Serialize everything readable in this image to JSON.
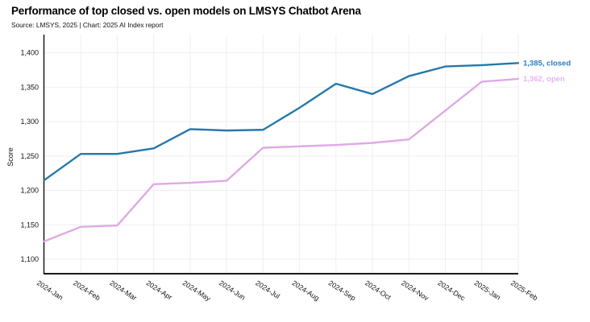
{
  "header": {
    "title": "Performance of top closed vs. open models on LMSYS Chatbot Arena",
    "source_line": "Source: LMSYS, 2025 | Chart: 2025 AI Index report"
  },
  "chart_data": {
    "type": "line",
    "title": "Performance of top closed vs. open models on LMSYS Chatbot Arena",
    "subtitle": "Source: LMSYS, 2025 | Chart: 2025 AI Index report",
    "xlabel": "",
    "ylabel": "Score",
    "ylim": [
      1075,
      1410
    ],
    "yticks": [
      1100,
      1150,
      1200,
      1250,
      1300,
      1350,
      1400
    ],
    "grid": true,
    "legend_position": "line-end-labels",
    "categories": [
      "2024-Jan",
      "2024-Feb",
      "2024-Mar",
      "2024-Apr",
      "2024-May",
      "2024-Jun",
      "2024-Jul",
      "2024-Aug",
      "2024-Sep",
      "2024-Oct",
      "2024-Nov",
      "2024-Dec",
      "2025-Jan",
      "2025-Feb"
    ],
    "series": [
      {
        "name": "closed",
        "color": "#2478aa",
        "label_color": "#2e7db6",
        "end_label": "1,385, closed",
        "final_value": 1385,
        "values": [
          1215,
          1253,
          1253,
          1261,
          1289,
          1287,
          1288,
          1320,
          1355,
          1340,
          1366,
          1380,
          1382,
          1385
        ]
      },
      {
        "name": "open",
        "color": "#dfa9e6",
        "label_color": "#e7b4ef",
        "end_label": "1,362, open",
        "final_value": 1362,
        "values": [
          1126,
          1147,
          1149,
          1209,
          1211,
          1214,
          1262,
          1264,
          1266,
          1269,
          1274,
          1316,
          1358,
          1362
        ]
      }
    ]
  },
  "style": {
    "background": "#ffffff",
    "grid_color": "#f0edf2",
    "axis_color": "#1a1a1a",
    "tick_color": "#111111"
  }
}
